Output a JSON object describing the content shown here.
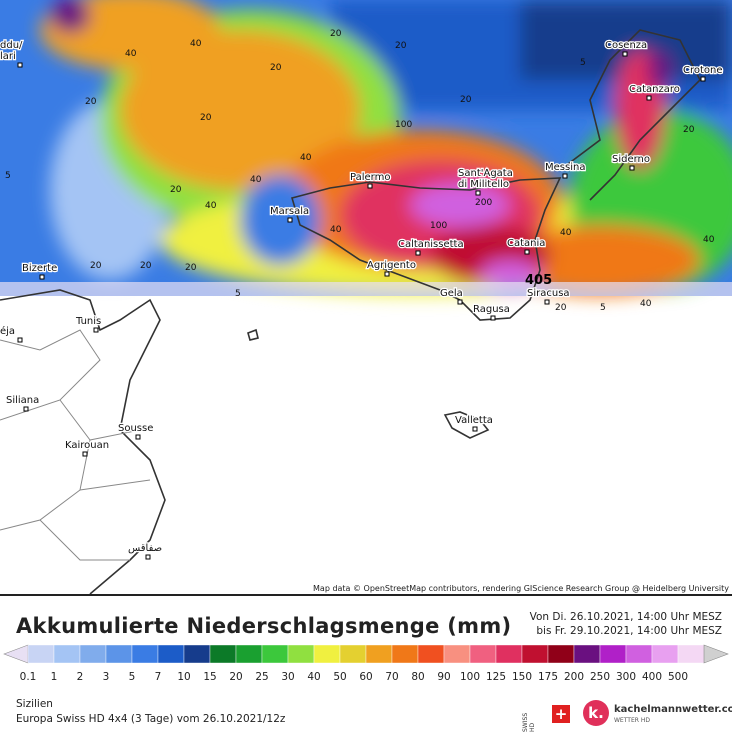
{
  "map": {
    "cities": [
      "Cosenza",
      "Crotone",
      "Catanzaro",
      "Siderno",
      "Messina",
      "Sant'Agata\ndi Militello",
      "Palermo",
      "Marsala",
      "Caltanissetta",
      "Catania",
      "Agrigento",
      "Gela",
      "Siracusa",
      "Ragusa",
      "Bizerte",
      "Tunis",
      "Siliana",
      "Sousse",
      "Kairouan",
      "Valletta",
      "صفاقس",
      "ddu/\nlari",
      "éja"
    ],
    "contour_labels": [
      "40",
      "20",
      "40",
      "20",
      "20",
      "5",
      "20",
      "40",
      "100",
      "20",
      "20",
      "40",
      "200",
      "100",
      "40",
      "40",
      "20",
      "5",
      "5",
      "20",
      "20",
      "40",
      "20",
      "5",
      "40",
      "20",
      "40",
      "20"
    ],
    "max_label": "405",
    "attribution": "Map data © OpenStreetMap contributors, rendering GIScience Research Group @ Heidelberg University"
  },
  "header": {
    "title": "Akkumulierte Niederschlagsmenge (mm)",
    "from": "Von Di. 26.10.2021, 14:00 Uhr MESZ",
    "to": "bis Fr. 29.10.2021, 14:00 Uhr MESZ"
  },
  "legend": {
    "values": [
      "0.1",
      "1",
      "2",
      "3",
      "5",
      "7",
      "10",
      "15",
      "20",
      "25",
      "30",
      "40",
      "50",
      "60",
      "70",
      "80",
      "90",
      "100",
      "125",
      "150",
      "175",
      "200",
      "250",
      "300",
      "400",
      "500"
    ],
    "colors": [
      "#e8e0f4",
      "#c8d4f4",
      "#a4c4f4",
      "#80acec",
      "#5c94e8",
      "#3a7ce4",
      "#1c5cc8",
      "#163c8c",
      "#0c7a28",
      "#1aa030",
      "#3cc83c",
      "#90e040",
      "#f0f040",
      "#e4d030",
      "#f0a020",
      "#f07818",
      "#f05020",
      "#f89080",
      "#f06080",
      "#e03060",
      "#c01030",
      "#900018",
      "#6a1080",
      "#b020c8",
      "#d060e0",
      "#e8a0f0",
      "#f4d8f4",
      "#d0d0d0"
    ]
  },
  "footer": {
    "region": "Sizilien",
    "model": "Europa Swiss HD 4x4 (3 Tage)  vom  26.10.2021/12z",
    "swiss": "SWISS HD",
    "brand": "kachelmannwetter.com",
    "brand_sub": "WETTER HD"
  }
}
